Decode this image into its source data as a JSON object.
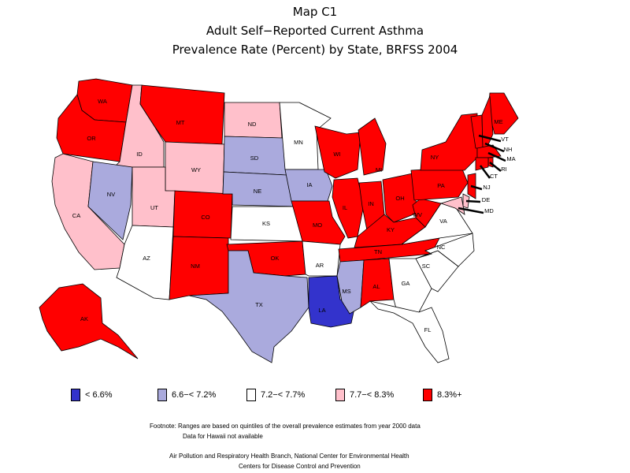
{
  "title": {
    "line1": "Map C1",
    "line2": "Adult Self−Reported Current Asthma",
    "line3": "Prevalence Rate (Percent) by State, BRFSS 2004"
  },
  "colors": {
    "lt6_6": "#3333cc",
    "c6_6_7_2": "#aaaadd",
    "c7_2_7_7": "#ffffff",
    "c7_7_8_3": "#ffc0cb",
    "c8_3_plus": "#ff0000",
    "border": "#000000"
  },
  "legend": [
    {
      "label": "< 6.6%",
      "color_key": "lt6_6"
    },
    {
      "label": "6.6−< 7.2%",
      "color_key": "c6_6_7_2"
    },
    {
      "label": "7.2−< 7.7%",
      "color_key": "c7_2_7_7"
    },
    {
      "label": "7.7−< 8.3%",
      "color_key": "c7_7_8_3"
    },
    {
      "label": "8.3%+",
      "color_key": "c8_3_plus"
    }
  ],
  "states": {
    "WA": "c8_3_plus",
    "OR": "c8_3_plus",
    "CA": "c7_7_8_3",
    "ID": "c7_7_8_3",
    "NV": "c6_6_7_2",
    "MT": "c8_3_plus",
    "WY": "c7_7_8_3",
    "UT": "c7_7_8_3",
    "AZ": "c7_2_7_7",
    "CO": "c8_3_plus",
    "NM": "c8_3_plus",
    "ND": "c7_7_8_3",
    "SD": "c6_6_7_2",
    "NE": "c6_6_7_2",
    "KS": "c7_2_7_7",
    "OK": "c8_3_plus",
    "TX": "c6_6_7_2",
    "MN": "c7_2_7_7",
    "IA": "c6_6_7_2",
    "MO": "c8_3_plus",
    "AR": "c7_2_7_7",
    "LA": "lt6_6",
    "WI": "c8_3_plus",
    "IL": "c8_3_plus",
    "MI": "c8_3_plus",
    "IN": "c8_3_plus",
    "OH": "c8_3_plus",
    "KY": "c8_3_plus",
    "TN": "c8_3_plus",
    "MS": "c6_6_7_2",
    "AL": "c8_3_plus",
    "GA": "c7_2_7_7",
    "FL": "c7_2_7_7",
    "SC": "c7_2_7_7",
    "NC": "c7_2_7_7",
    "VA": "c7_2_7_7",
    "WV": "c8_3_plus",
    "PA": "c8_3_plus",
    "NY": "c8_3_plus",
    "ME": "c8_3_plus",
    "VT": "c8_3_plus",
    "NH": "c8_3_plus",
    "MA": "c8_3_plus",
    "RI": "c8_3_plus",
    "CT": "c8_3_plus",
    "NJ": "c8_3_plus",
    "DE": "c7_7_8_3",
    "MD": "c7_7_8_3",
    "AK": "c8_3_plus"
  },
  "state_labels": [
    "WA",
    "OR",
    "CA",
    "ID",
    "NV",
    "MT",
    "WY",
    "UT",
    "AZ",
    "CO",
    "NM",
    "ND",
    "SD",
    "NE",
    "KS",
    "OK",
    "TX",
    "MN",
    "IA",
    "MO",
    "AR",
    "LA",
    "WI",
    "IL",
    "MI",
    "IN",
    "OH",
    "KY",
    "TN",
    "MS",
    "AL",
    "GA",
    "FL",
    "SC",
    "NC",
    "VA",
    "WV",
    "PA",
    "NY",
    "ME",
    "VT",
    "NH",
    "MA",
    "RI",
    "CT",
    "NJ",
    "DE",
    "MD",
    "AK"
  ],
  "footnote": {
    "line1": "Footnote: Ranges are based on quintiles of the overall prevalence estimates from year 2000 data",
    "line2": "Data for Hawaii not available"
  },
  "credit": {
    "line1": "Air Pollution and Respiratory Health Branch, National Center for Environmental Health",
    "line2": "Centers for Disease Control and Prevention"
  }
}
